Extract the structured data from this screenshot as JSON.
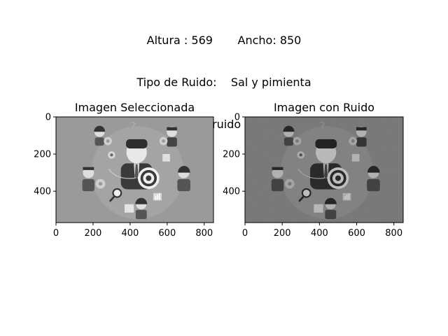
{
  "header": {
    "line1": "Altura : 569       Ancho: 850",
    "line2": "Tipo de Ruido:    Sal y pimienta",
    "line3": "Cantidad de ruido [0-1]:    0.3"
  },
  "panels": [
    {
      "title": "Imagen Seleccionada",
      "noisy": false,
      "xticks": [
        "0",
        "200",
        "400",
        "600",
        "800"
      ],
      "yticks": [
        "0",
        "200",
        "400"
      ]
    },
    {
      "title": "Imagen con Ruido",
      "noisy": true,
      "xticks": [
        "0",
        "200",
        "400",
        "600",
        "800"
      ],
      "yticks": [
        "0",
        "200",
        "400"
      ]
    }
  ],
  "image": {
    "width_units": 850,
    "height_units": 569,
    "bg_color": "#9a9a9a"
  }
}
